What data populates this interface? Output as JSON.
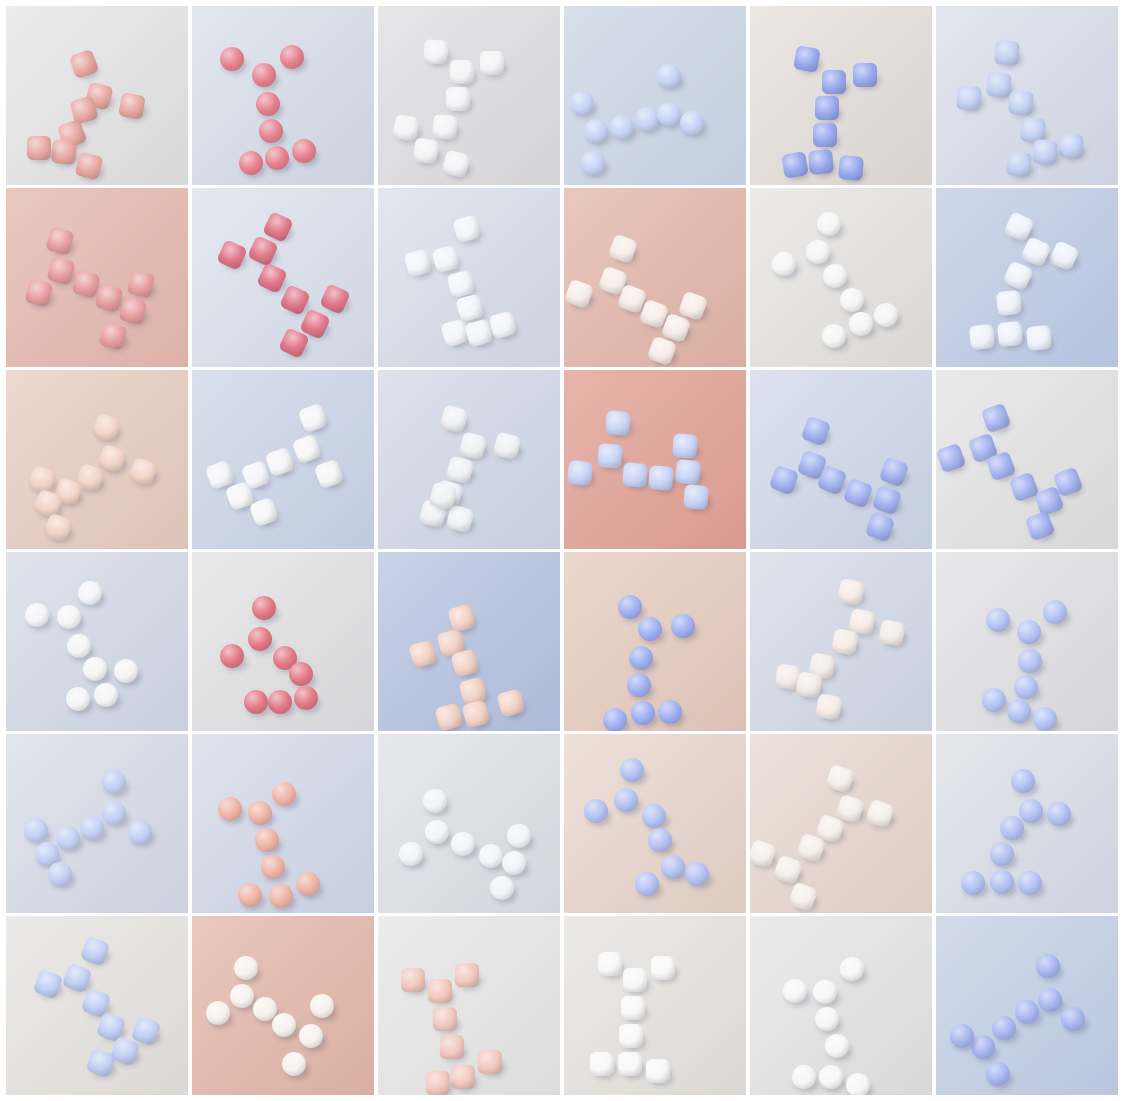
{
  "grid": {
    "rows": 6,
    "columns": 6,
    "tiles": [
      {
        "shape": "cube",
        "object_color": "#e9a9a3",
        "background": [
          "#ececec",
          "#d8d8d8"
        ]
      },
      {
        "shape": "sphere",
        "object_color": "#e6828f",
        "background": [
          "#e2e6ee",
          "#ccd3df"
        ]
      },
      {
        "shape": "cube",
        "object_color": "#f4f4f6",
        "background": [
          "#e6e6e8",
          "#d4d4d6"
        ]
      },
      {
        "shape": "sphere",
        "object_color": "#c7d4f4",
        "background": [
          "#d8dfea",
          "#c3cdde"
        ]
      },
      {
        "shape": "cube",
        "object_color": "#99a9ee",
        "background": [
          "#ebe7e4",
          "#d9d3cf"
        ]
      },
      {
        "shape": "cube",
        "object_color": "#c3d1f2",
        "background": [
          "#e3e6ee",
          "#ccd3e0"
        ]
      },
      {
        "shape": "cube",
        "object_color": "#e8a0a0",
        "background": [
          "#e8c8c0",
          "#dcb1a8"
        ]
      },
      {
        "shape": "cube",
        "object_color": "#e2788c",
        "background": [
          "#e4e8f0",
          "#cfd6e2"
        ]
      },
      {
        "shape": "cube",
        "object_color": "#f2f5fb",
        "background": [
          "#e2e6ee",
          "#ccd3df"
        ]
      },
      {
        "shape": "cube",
        "object_color": "#f7ede8",
        "background": [
          "#e8c8bd",
          "#d9ada2"
        ]
      },
      {
        "shape": "sphere",
        "object_color": "#f5f5f5",
        "background": [
          "#ecebe9",
          "#dad8d5"
        ]
      },
      {
        "shape": "cube",
        "object_color": "#eef2fb",
        "background": [
          "#cfd8ea",
          "#b6c3dd"
        ]
      },
      {
        "shape": "cube",
        "object_color": "#f2d4c8",
        "background": [
          "#ecd9d0",
          "#dcc3b8"
        ]
      },
      {
        "shape": "cube",
        "object_color": "#f6f6f8",
        "background": [
          "#d9e0ec",
          "#c1cbdf"
        ]
      },
      {
        "shape": "cube",
        "object_color": "#f0f1f4",
        "background": [
          "#dde2ec",
          "#c6cedd"
        ]
      },
      {
        "shape": "cube",
        "object_color": "#c9d4f6",
        "background": [
          "#e7b5ab",
          "#d89a90"
        ]
      },
      {
        "shape": "cube",
        "object_color": "#a4b3f0",
        "background": [
          "#dce2ee",
          "#c5cedf"
        ]
      },
      {
        "shape": "cube",
        "object_color": "#a6b4f0",
        "background": [
          "#eaeaea",
          "#d8d8d8"
        ]
      },
      {
        "shape": "sphere",
        "object_color": "#f5f5f7",
        "background": [
          "#dfe3ec",
          "#c8cfdd"
        ]
      },
      {
        "shape": "sphere",
        "object_color": "#e27986",
        "background": [
          "#e9e9ea",
          "#d6d6d8"
        ]
      },
      {
        "shape": "cube",
        "object_color": "#f4d2c6",
        "background": [
          "#c9d2e7",
          "#acb9d8"
        ]
      },
      {
        "shape": "sphere",
        "object_color": "#9fb0f2",
        "background": [
          "#ebd8ce",
          "#dcc2b5"
        ]
      },
      {
        "shape": "cube",
        "object_color": "#f4ebe6",
        "background": [
          "#dfe3ec",
          "#c8cfdd"
        ]
      },
      {
        "shape": "sphere",
        "object_color": "#b3c3f3",
        "background": [
          "#e8e8ea",
          "#d6d6d8"
        ]
      },
      {
        "shape": "sphere",
        "object_color": "#c4d0f4",
        "background": [
          "#e2e5ec",
          "#cbd1de"
        ]
      },
      {
        "shape": "sphere",
        "object_color": "#eeb4a6",
        "background": [
          "#dfe3ec",
          "#c6cedf"
        ]
      },
      {
        "shape": "sphere",
        "object_color": "#f2f4fa",
        "background": [
          "#e6e8ec",
          "#d2d6de"
        ]
      },
      {
        "shape": "sphere",
        "object_color": "#b3c2f3",
        "background": [
          "#ede0d9",
          "#ddcbc1"
        ]
      },
      {
        "shape": "cube",
        "object_color": "#f6efe9",
        "background": [
          "#ece1db",
          "#ddcdc4"
        ]
      },
      {
        "shape": "sphere",
        "object_color": "#b3c1f2",
        "background": [
          "#e4e7ed",
          "#cdd3df"
        ]
      },
      {
        "shape": "cube",
        "object_color": "#c3d0f4",
        "background": [
          "#eceae8",
          "#dbd8d5"
        ]
      },
      {
        "shape": "sphere",
        "object_color": "#f6f2ee",
        "background": [
          "#e9c9bd",
          "#d9aea2"
        ]
      },
      {
        "shape": "cube",
        "object_color": "#f2c9bf",
        "background": [
          "#ececec",
          "#dcdcdc"
        ]
      },
      {
        "shape": "cube",
        "object_color": "#f8f8f8",
        "background": [
          "#eceae8",
          "#dbd8d5"
        ]
      },
      {
        "shape": "sphere",
        "object_color": "#f7f7f7",
        "background": [
          "#ebebeb",
          "#d9d9d9"
        ]
      },
      {
        "shape": "sphere",
        "object_color": "#a7b6f0",
        "background": [
          "#d3dbea",
          "#b9c6de"
        ]
      }
    ]
  }
}
